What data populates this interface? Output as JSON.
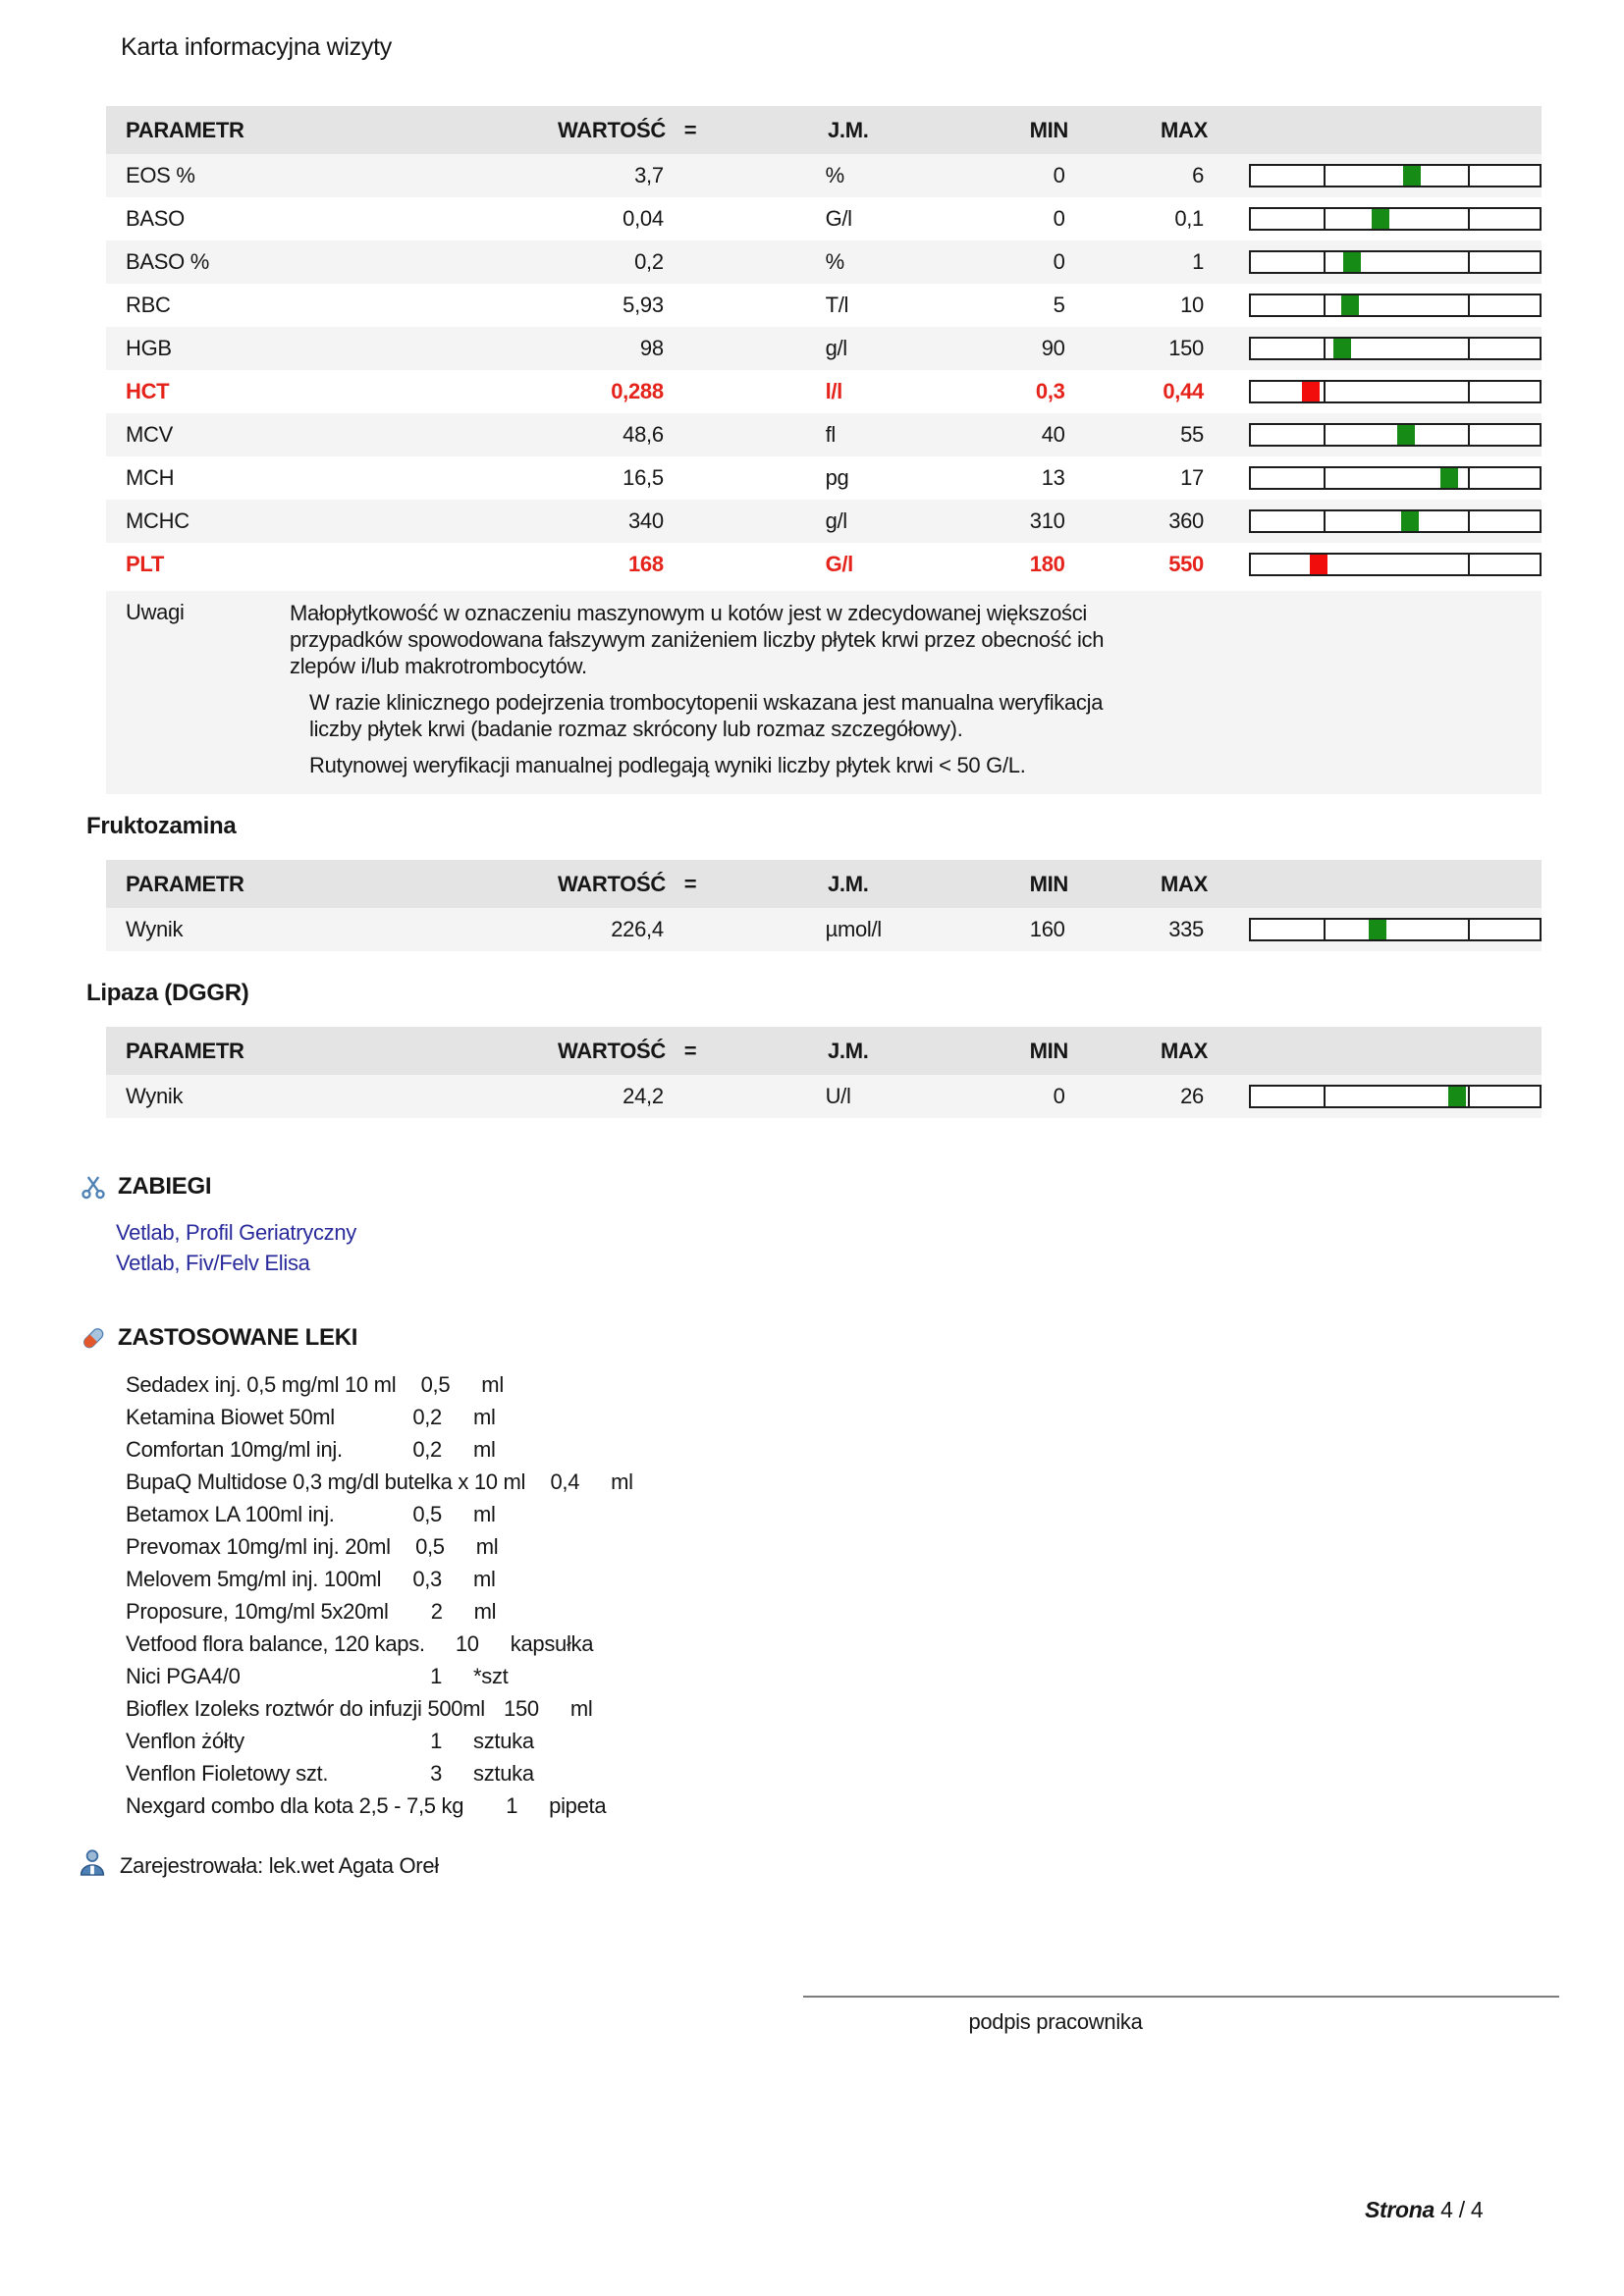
{
  "page": {
    "title": "Karta informacyjna wizyty",
    "signature_label": "podpis pracownika",
    "page_label": "Strona",
    "page_number": "4  / 4"
  },
  "colors": {
    "normal_marker": "#168c16",
    "alert_marker": "#f20d0d",
    "alert_text": "#e5231b",
    "link_blue": "#292a9b",
    "header_bg": "#e4e4e4",
    "stripe_bg": "#f4f4f4"
  },
  "table_headers": {
    "parameter": "PARAMETR",
    "value": "WARTOŚĆ",
    "eq": "=",
    "unit": "J.M.",
    "min": "MIN",
    "max": "MAX"
  },
  "cbc": {
    "remarks_label": "Uwagi",
    "rows": [
      {
        "parameter": "EOS %",
        "value": "3,7",
        "unit": "%",
        "min": "0",
        "max": "6",
        "value_num": 3.7,
        "min_num": 0,
        "max_num": 6,
        "status": "normal"
      },
      {
        "parameter": "BASO",
        "value": "0,04",
        "unit": "G/l",
        "min": "0",
        "max": "0,1",
        "value_num": 0.04,
        "min_num": 0,
        "max_num": 0.1,
        "status": "normal"
      },
      {
        "parameter": "BASO %",
        "value": "0,2",
        "unit": "%",
        "min": "0",
        "max": "1",
        "value_num": 0.2,
        "min_num": 0,
        "max_num": 1,
        "status": "normal"
      },
      {
        "parameter": "RBC",
        "value": "5,93",
        "unit": "T/l",
        "min": "5",
        "max": "10",
        "value_num": 5.93,
        "min_num": 5,
        "max_num": 10,
        "status": "normal"
      },
      {
        "parameter": "HGB",
        "value": "98",
        "unit": "g/l",
        "min": "90",
        "max": "150",
        "value_num": 98,
        "min_num": 90,
        "max_num": 150,
        "status": "normal"
      },
      {
        "parameter": "HCT",
        "value": "0,288",
        "unit": "l/l",
        "min": "0,3",
        "max": "0,44",
        "value_num": 0.288,
        "min_num": 0.3,
        "max_num": 0.44,
        "status": "low"
      },
      {
        "parameter": "MCV",
        "value": "48,6",
        "unit": "fl",
        "min": "40",
        "max": "55",
        "value_num": 48.6,
        "min_num": 40,
        "max_num": 55,
        "status": "normal"
      },
      {
        "parameter": "MCH",
        "value": "16,5",
        "unit": "pg",
        "min": "13",
        "max": "17",
        "value_num": 16.5,
        "min_num": 13,
        "max_num": 17,
        "status": "normal"
      },
      {
        "parameter": "MCHC",
        "value": "340",
        "unit": "g/l",
        "min": "310",
        "max": "360",
        "value_num": 340,
        "min_num": 310,
        "max_num": 360,
        "status": "normal"
      },
      {
        "parameter": "PLT",
        "value": "168",
        "unit": "G/l",
        "min": "180",
        "max": "550",
        "value_num": 168,
        "min_num": 180,
        "max_num": 550,
        "status": "low"
      }
    ],
    "remarks": [
      {
        "indent": 0,
        "lines": [
          "Małopłytkowość w oznaczeniu maszynowym u kotów jest w zdecydowanej większości",
          "przypadków spowodowana fałszywym zaniżeniem liczby płytek krwi przez obecność ich",
          "zlepów i/lub makrotrombocytów."
        ]
      },
      {
        "indent": 1,
        "lines": [
          "W razie klinicznego podejrzenia trombocytopenii wskazana jest manualna weryfikacja",
          "liczby płytek krwi (badanie rozmaz skrócony lub rozmaz szczegółowy)."
        ]
      },
      {
        "indent": 1,
        "lines": [
          "Rutynowej weryfikacji manualnej podlegają wyniki liczby płytek krwi < 50 G/L."
        ]
      }
    ]
  },
  "fructosamine": {
    "heading": "Fruktozamina",
    "rows": [
      {
        "parameter": "Wynik",
        "value": "226,4",
        "unit": "µmol/l",
        "min": "160",
        "max": "335",
        "value_num": 226.4,
        "min_num": 160,
        "max_num": 335,
        "status": "normal"
      }
    ]
  },
  "lipase": {
    "heading": "Lipaza (DGGR)",
    "rows": [
      {
        "parameter": "Wynik",
        "value": "24,2",
        "unit": "U/l",
        "min": "0",
        "max": "26",
        "value_num": 24.2,
        "min_num": 0,
        "max_num": 26,
        "status": "normal"
      }
    ]
  },
  "procedures": {
    "heading": "ZABIEGI",
    "items": [
      "Vetlab, Profil Geriatryczny",
      "Vetlab, Fiv/Felv Elisa"
    ]
  },
  "medications": {
    "heading": "ZASTOSOWANE LEKI",
    "items": [
      {
        "name": "Sedadex inj. 0,5 mg/ml 10 ml",
        "qty": "0,5",
        "unit": "ml"
      },
      {
        "name": "Ketamina Biowet 50ml",
        "qty": "0,2",
        "unit": "ml"
      },
      {
        "name": "Comfortan 10mg/ml inj.",
        "qty": "0,2",
        "unit": "ml"
      },
      {
        "name": "BupaQ Multidose 0,3 mg/dl butelka x 10 ml",
        "qty": "0,4",
        "unit": "ml"
      },
      {
        "name": "Betamox LA 100ml inj.",
        "qty": "0,5",
        "unit": "ml"
      },
      {
        "name": "Prevomax 10mg/ml inj. 20ml",
        "qty": "0,5",
        "unit": "ml"
      },
      {
        "name": "Melovem 5mg/ml inj. 100ml",
        "qty": "0,3",
        "unit": "ml"
      },
      {
        "name": "Proposure, 10mg/ml 5x20ml",
        "qty": "2",
        "unit": "ml"
      },
      {
        "name": "Vetfood flora balance, 120 kaps.",
        "qty": "10",
        "unit": "kapsułka"
      },
      {
        "name": "Nici PGA4/0",
        "qty": "1",
        "unit": "*szt"
      },
      {
        "name": "Bioflex Izoleks roztwór do infuzji 500ml",
        "qty": "150",
        "unit": "ml"
      },
      {
        "name": "Venflon żółty",
        "qty": "1",
        "unit": "sztuka"
      },
      {
        "name": "Venflon Fioletowy szt.",
        "qty": "3",
        "unit": "sztuka"
      },
      {
        "name": "Nexgard combo dla kota 2,5 - 7,5 kg",
        "qty": "1",
        "unit": "pipeta"
      }
    ]
  },
  "registered_by": {
    "text": "Zarejestrowała: lek.wet Agata Oreł"
  }
}
